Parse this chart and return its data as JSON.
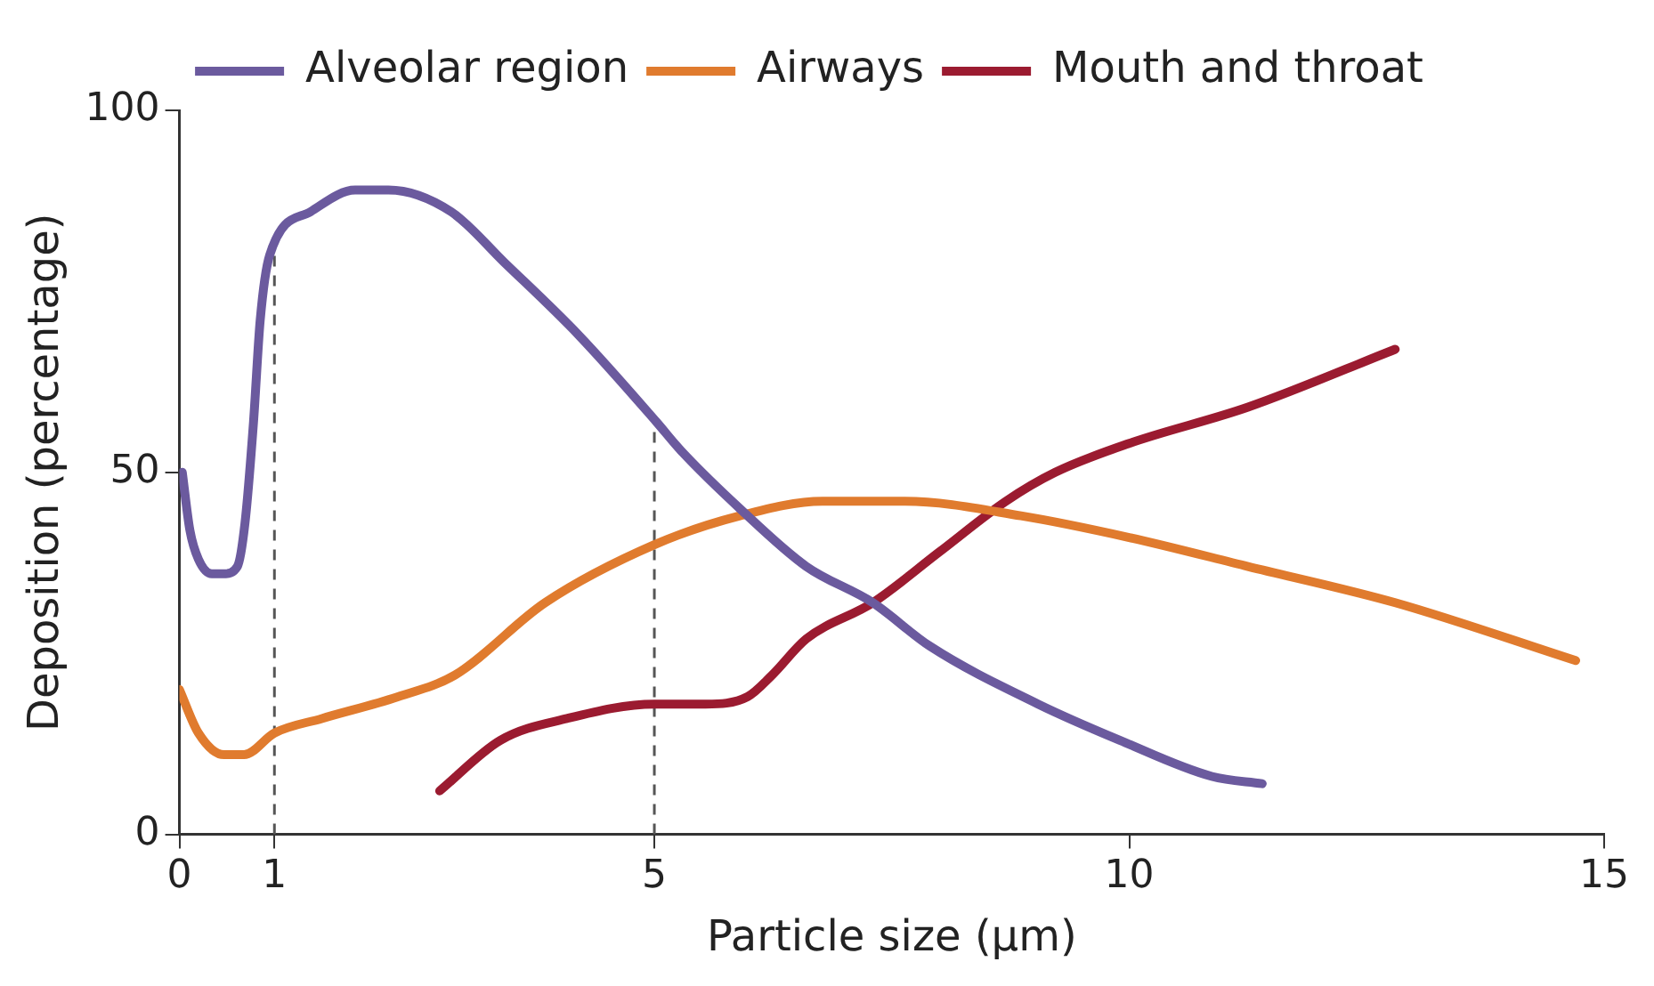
{
  "chart_data": {
    "type": "line",
    "xlabel": "Particle size (µm)",
    "ylabel": "Deposition (percentage)",
    "xlim": [
      0,
      15
    ],
    "xticks": [
      0,
      1,
      5,
      10,
      15
    ],
    "ylim": [
      0,
      100
    ],
    "yticks": [
      0,
      50,
      100
    ],
    "grid": false,
    "legend": "top",
    "marker": "none",
    "line_style": "solid",
    "ref_lines": [
      {
        "axis": "x",
        "value": 1,
        "line_style": "dashed",
        "color": "#555555"
      },
      {
        "axis": "x",
        "value": 5,
        "line_style": "dashed",
        "color": "#555555"
      }
    ],
    "series": [
      {
        "name": "Alveolar region",
        "color": "#6b5a9e",
        "x": [
          0.03,
          0.11,
          0.2,
          0.34,
          0.47,
          0.61,
          0.69,
          0.78,
          0.85,
          0.95,
          1.38,
          1.85,
          2.2,
          2.86,
          3.42,
          4.2,
          5.02,
          5.28,
          5.9,
          6.6,
          7.3,
          7.9,
          9.04,
          9.9,
          10.87,
          11.4
        ],
        "values": [
          50,
          42,
          38,
          36,
          36,
          37,
          43,
          57,
          71,
          80,
          86,
          89,
          89,
          86,
          79,
          69,
          57,
          53,
          45,
          37,
          32,
          26,
          18,
          13,
          8,
          7
        ]
      },
      {
        "name": "Airways",
        "color": "#e07b2e",
        "x": [
          0,
          0.2,
          0.47,
          0.68,
          1,
          1.5,
          2.3,
          2.9,
          3.85,
          5,
          5.9,
          6.77,
          7.64,
          8.86,
          10,
          11.25,
          12.8,
          14.7
        ],
        "values": [
          20,
          14,
          11,
          11,
          14,
          16,
          19,
          22,
          32,
          40,
          44,
          46,
          46,
          44,
          41,
          37,
          32,
          24
        ]
      },
      {
        "name": "Mouth and throat",
        "color": "#9b1b30",
        "x": [
          2.74,
          3.38,
          4.08,
          5,
          5.54,
          5.98,
          6.24,
          6.6,
          7.3,
          8,
          8.7,
          9.22,
          10,
          11.25,
          12.8
        ],
        "values": [
          6,
          13,
          16,
          18,
          18,
          19,
          22,
          27,
          32,
          39,
          46,
          50,
          54,
          59,
          67
        ]
      }
    ]
  }
}
